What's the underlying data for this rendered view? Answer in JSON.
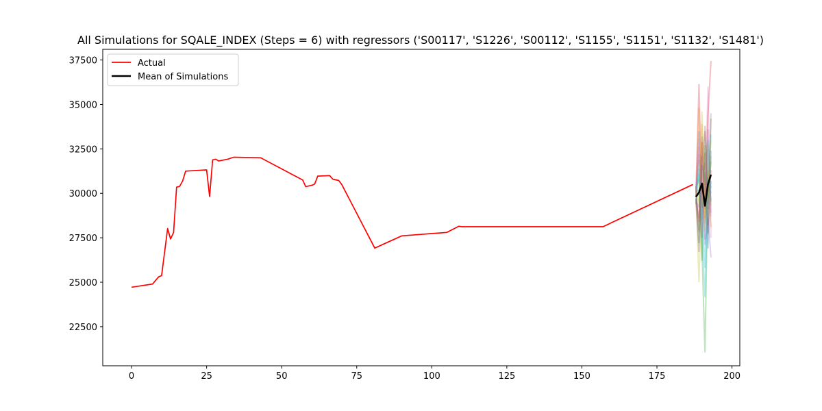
{
  "chart_data": {
    "type": "line",
    "title": "All Simulations for SQALE_INDEX (Steps = 6) with regressors ('S00117', 'S1226', 'S00112', 'S1155', 'S1151', 'S1132', 'S1481')",
    "xlabel": "",
    "ylabel": "",
    "xlim": [
      -9.6,
      202.6
    ],
    "ylim": [
      20300,
      38100
    ],
    "xticks": [
      0,
      25,
      50,
      75,
      100,
      125,
      150,
      175,
      200
    ],
    "yticks": [
      22500,
      25000,
      27500,
      30000,
      32500,
      35000,
      37500
    ],
    "legend": {
      "position": "top-left",
      "entries": [
        "Actual",
        "Mean of Simulations"
      ]
    },
    "grid": false,
    "series": [
      {
        "name": "Actual",
        "color": "#ff0000",
        "x": [
          0,
          7,
          9,
          10,
          12,
          13,
          14,
          15,
          16,
          17,
          18,
          25,
          26,
          27,
          28,
          29,
          32,
          34,
          43,
          57,
          58,
          60,
          61,
          62,
          66,
          67,
          69,
          70,
          81,
          90,
          105,
          109,
          110,
          157,
          187
        ],
        "y": [
          24720,
          24900,
          25300,
          25370,
          28020,
          27430,
          27800,
          30350,
          30390,
          30700,
          31250,
          31320,
          29820,
          31880,
          31920,
          31820,
          31920,
          32030,
          32000,
          30750,
          30380,
          30450,
          30520,
          30970,
          31000,
          30800,
          30720,
          30500,
          26920,
          27610,
          27800,
          28150,
          28120,
          28120,
          30500
        ]
      },
      {
        "name": "Mean of Simulations",
        "color": "#000000",
        "x": [
          188,
          189,
          190,
          191,
          192,
          193
        ],
        "y": [
          29800,
          30050,
          30550,
          29300,
          30500,
          31050
        ]
      }
    ],
    "simulations": {
      "x": [
        188,
        189,
        190,
        191,
        192,
        193
      ],
      "runs": [
        {
          "color": "#1f77b4",
          "y": [
            29800,
            33500,
            28500,
            31200,
            29100,
            32400
          ]
        },
        {
          "color": "#ff7f0e",
          "y": [
            30200,
            27800,
            33900,
            28300,
            31700,
            29600
          ]
        },
        {
          "color": "#2ca02c",
          "y": [
            29500,
            31900,
            26800,
            21050,
            30900,
            30300
          ]
        },
        {
          "color": "#d62728",
          "y": [
            30100,
            36150,
            29200,
            32300,
            28200,
            31300
          ]
        },
        {
          "color": "#9467bd",
          "y": [
            29700,
            28600,
            32100,
            27400,
            33600,
            28900
          ]
        },
        {
          "color": "#8c564b",
          "y": [
            30300,
            30800,
            27500,
            33800,
            29400,
            34200
          ]
        },
        {
          "color": "#e377c2",
          "y": [
            29900,
            32600,
            31200,
            29700,
            36000,
            27500
          ]
        },
        {
          "color": "#7f7f7f",
          "y": [
            29600,
            29200,
            33200,
            30600,
            27800,
            32100
          ]
        },
        {
          "color": "#bcbd22",
          "y": [
            30000,
            25000,
            30400,
            27900,
            32800,
            29300
          ]
        },
        {
          "color": "#17becf",
          "y": [
            29400,
            31400,
            28100,
            24150,
            30200,
            33300
          ]
        },
        {
          "color": "#1f77b4",
          "y": [
            30400,
            27200,
            31600,
            30800,
            26900,
            30700
          ]
        },
        {
          "color": "#ff7f0e",
          "y": [
            29800,
            34800,
            29600,
            28600,
            31300,
            28100
          ]
        },
        {
          "color": "#2ca02c",
          "y": [
            30100,
            30200,
            26200,
            32700,
            29700,
            31800
          ]
        },
        {
          "color": "#d62728",
          "y": [
            29700,
            28400,
            32900,
            29100,
            34400,
            37450
          ]
        },
        {
          "color": "#9467bd",
          "y": [
            30200,
            32200,
            30000,
            27100,
            28600,
            26400
          ]
        },
        {
          "color": "#8c564b",
          "y": [
            29500,
            26700,
            31800,
            33500,
            30400,
            30000
          ]
        },
        {
          "color": "#e377c2",
          "y": [
            30000,
            33100,
            27800,
            30300,
            32500,
            28700
          ]
        },
        {
          "color": "#bcbd22",
          "y": [
            29900,
            29500,
            34600,
            28900,
            29900,
            33000
          ]
        },
        {
          "color": "#17becf",
          "y": [
            30300,
            31100,
            29000,
            25800,
            33000,
            29500
          ]
        },
        {
          "color": "#7f7f7f",
          "y": [
            29600,
            27900,
            30800,
            31700,
            27700,
            34500
          ]
        }
      ]
    }
  }
}
